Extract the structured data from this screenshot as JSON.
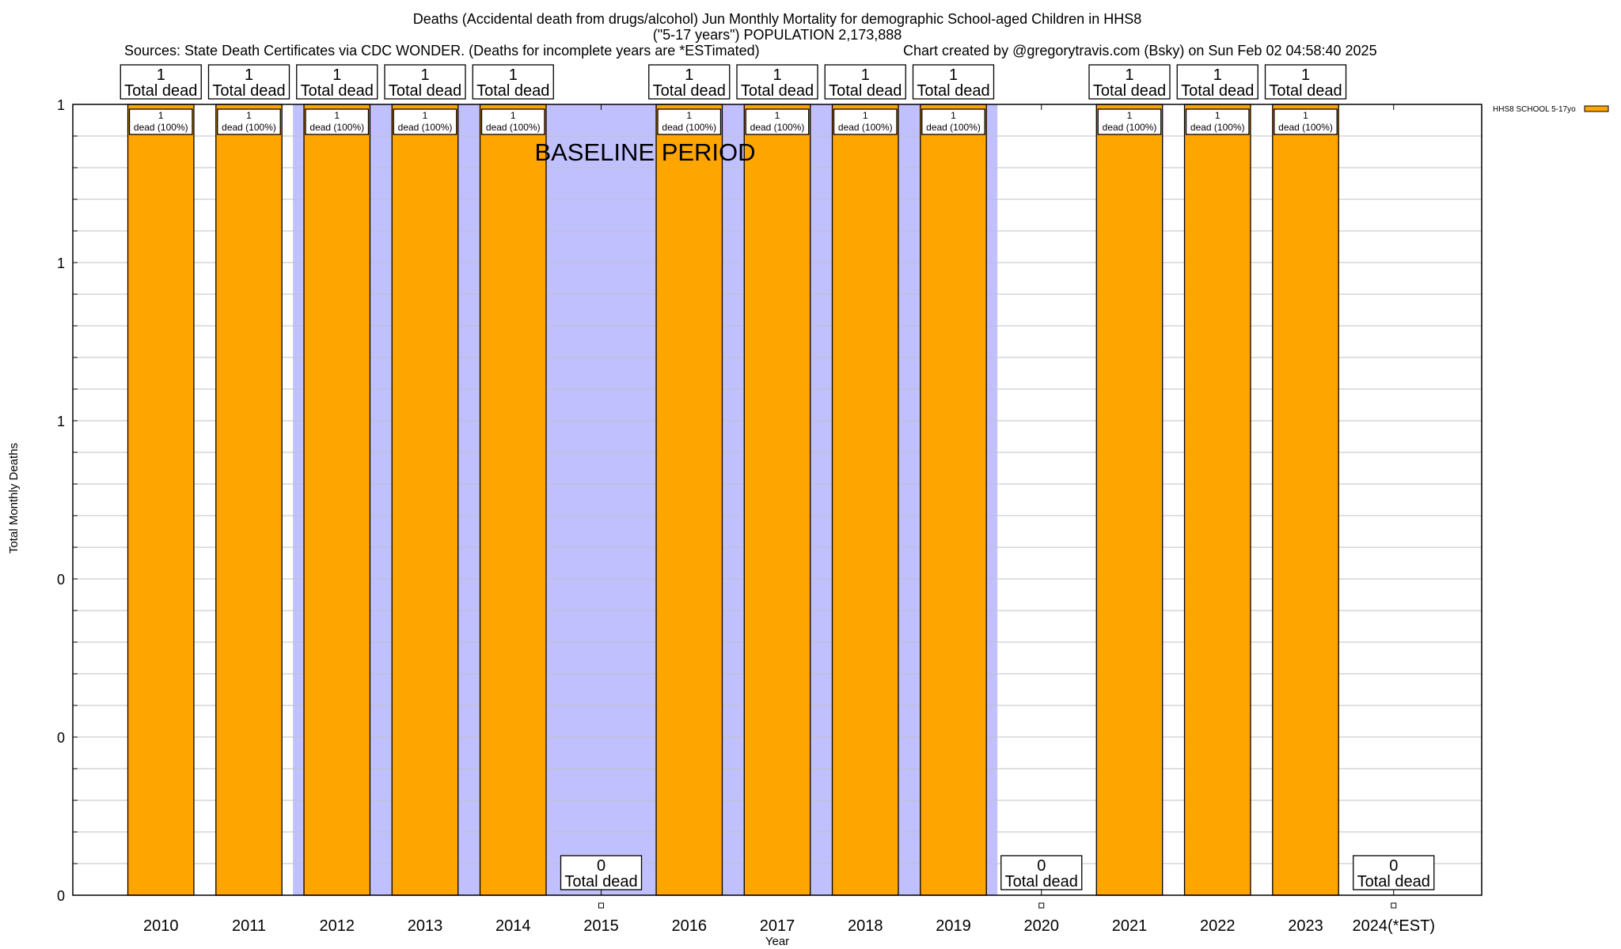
{
  "chart_data": {
    "type": "bar",
    "title_lines": [
      "Deaths (Accidental death from drugs/alcohol) Jun Monthly Mortality for demographic School-aged Children in HHS8",
      "(\"5-17 years\") POPULATION 2,173,888"
    ],
    "sources": "Sources: State Death Certificates via CDC WONDER. (Deaths for incomplete years are *ESTimated)",
    "credit": "Chart created by @gregorytravis.com (Bsky) on Sun Feb 02 04:58:40 2025",
    "xlabel": "Year",
    "ylabel": "Total Monthly Deaths",
    "categories": [
      "2010",
      "2011",
      "2012",
      "2013",
      "2014",
      "2015",
      "2016",
      "2017",
      "2018",
      "2019",
      "2020",
      "2021",
      "2022",
      "2023",
      "2024(*EST)"
    ],
    "series": [
      {
        "name": "HHS8 SCHOOL 5-17yo",
        "color": "#ffa500",
        "values": [
          1,
          1,
          1,
          1,
          1,
          0,
          1,
          1,
          1,
          1,
          0,
          1,
          1,
          1,
          0
        ]
      }
    ],
    "total_labels": [
      "1",
      "1",
      "1",
      "1",
      "1",
      "0",
      "1",
      "1",
      "1",
      "1",
      "0",
      "1",
      "1",
      "1",
      "0"
    ],
    "total_suffix": "Total dead",
    "inner_labels": [
      "dead (100%)"
    ],
    "ylim": [
      0,
      1
    ],
    "yticks": [
      0,
      0.2,
      0.4,
      0.6,
      0.8,
      1
    ],
    "ytick_labels": [
      "0",
      "0",
      "0",
      "1",
      "1",
      "1"
    ],
    "grid": true,
    "baseline": {
      "label": "BASELINE PERIOD",
      "from": "2012",
      "to": "2019",
      "color": "#c0c0ff"
    },
    "legend": {
      "position": "top-right"
    }
  }
}
